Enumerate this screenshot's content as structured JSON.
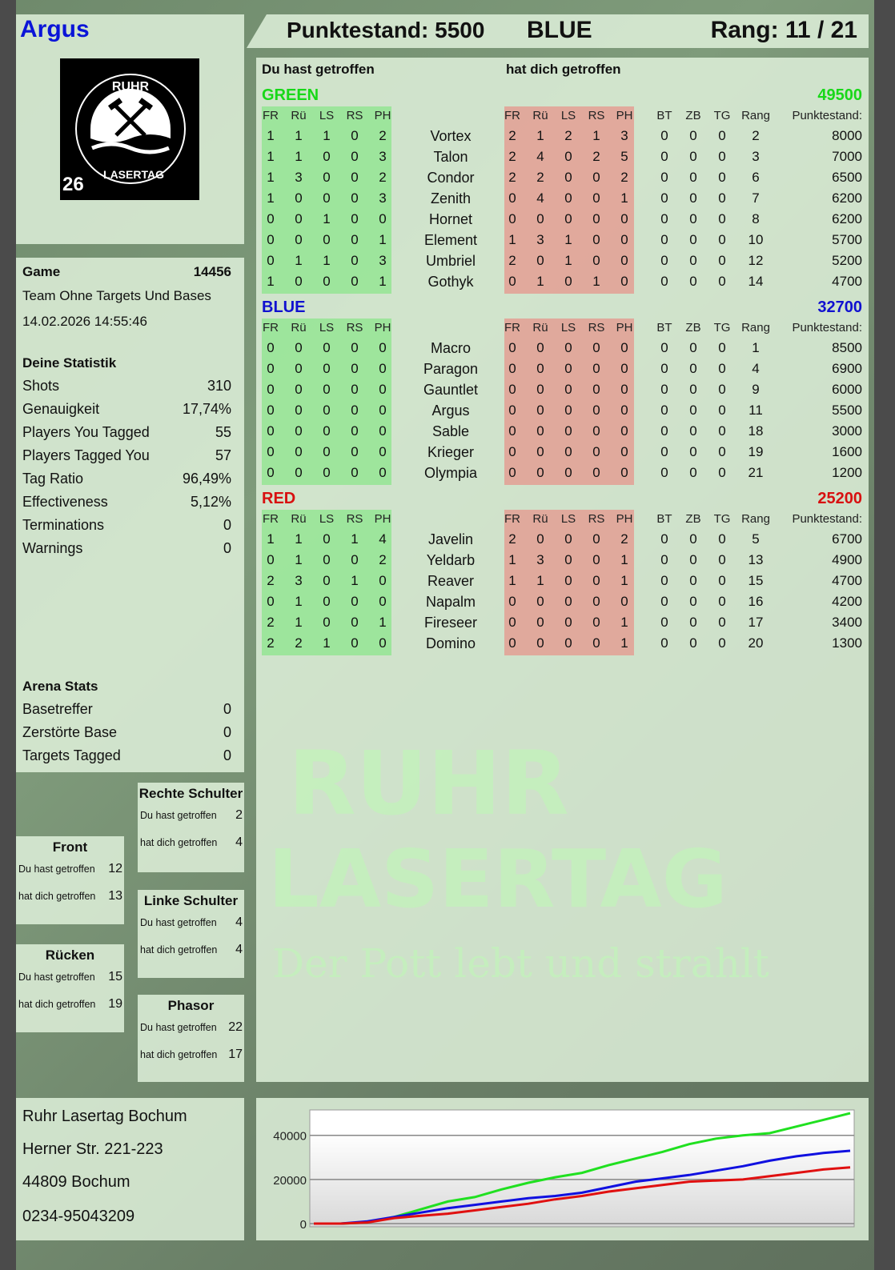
{
  "player": {
    "name": "Argus",
    "color": "#0a14d8"
  },
  "logo": {
    "top": "RUHR",
    "bottom": "LASERTAG",
    "number": "26"
  },
  "header": {
    "score": "Punktestand: 5500",
    "team": "BLUE",
    "rank": "Rang: 11 / 21"
  },
  "table": {
    "hit_by_you": "Du hast getroffen",
    "hit_you": "hat dich getroffen",
    "cols_hit": [
      "FR",
      "Rü",
      "LS",
      "RS",
      "PH"
    ],
    "cols_extra": [
      "BT",
      "ZB",
      "TG",
      "Rang",
      "Punktestand:"
    ],
    "teams": [
      {
        "name": "GREEN",
        "score": "49500",
        "color": "#18d818",
        "players": [
          {
            "n": "Vortex",
            "a": [
              1,
              1,
              1,
              0,
              2
            ],
            "b": [
              2,
              1,
              2,
              1,
              3
            ],
            "e": [
              0,
              0,
              0,
              2
            ],
            "p": 8000
          },
          {
            "n": "Talon",
            "a": [
              1,
              1,
              0,
              0,
              3
            ],
            "b": [
              2,
              4,
              0,
              2,
              5
            ],
            "e": [
              0,
              0,
              0,
              3
            ],
            "p": 7000
          },
          {
            "n": "Condor",
            "a": [
              1,
              3,
              0,
              0,
              2
            ],
            "b": [
              2,
              2,
              0,
              0,
              2
            ],
            "e": [
              0,
              0,
              0,
              6
            ],
            "p": 6500
          },
          {
            "n": "Zenith",
            "a": [
              1,
              0,
              0,
              0,
              3
            ],
            "b": [
              0,
              4,
              0,
              0,
              1
            ],
            "e": [
              0,
              0,
              0,
              7
            ],
            "p": 6200
          },
          {
            "n": "Hornet",
            "a": [
              0,
              0,
              1,
              0,
              0
            ],
            "b": [
              0,
              0,
              0,
              0,
              0
            ],
            "e": [
              0,
              0,
              0,
              8
            ],
            "p": 6200
          },
          {
            "n": "Element",
            "a": [
              0,
              0,
              0,
              0,
              1
            ],
            "b": [
              1,
              3,
              1,
              0,
              0
            ],
            "e": [
              0,
              0,
              0,
              10
            ],
            "p": 5700
          },
          {
            "n": "Umbriel",
            "a": [
              0,
              1,
              1,
              0,
              3
            ],
            "b": [
              2,
              0,
              1,
              0,
              0
            ],
            "e": [
              0,
              0,
              0,
              12
            ],
            "p": 5200
          },
          {
            "n": "Gothyk",
            "a": [
              1,
              0,
              0,
              0,
              1
            ],
            "b": [
              0,
              1,
              0,
              1,
              0
            ],
            "e": [
              0,
              0,
              0,
              14
            ],
            "p": 4700
          }
        ]
      },
      {
        "name": "BLUE",
        "score": "32700",
        "color": "#1010d0",
        "players": [
          {
            "n": "Macro",
            "a": [
              0,
              0,
              0,
              0,
              0
            ],
            "b": [
              0,
              0,
              0,
              0,
              0
            ],
            "e": [
              0,
              0,
              0,
              1
            ],
            "p": 8500
          },
          {
            "n": "Paragon",
            "a": [
              0,
              0,
              0,
              0,
              0
            ],
            "b": [
              0,
              0,
              0,
              0,
              0
            ],
            "e": [
              0,
              0,
              0,
              4
            ],
            "p": 6900
          },
          {
            "n": "Gauntlet",
            "a": [
              0,
              0,
              0,
              0,
              0
            ],
            "b": [
              0,
              0,
              0,
              0,
              0
            ],
            "e": [
              0,
              0,
              0,
              9
            ],
            "p": 6000
          },
          {
            "n": "Argus",
            "a": [
              0,
              0,
              0,
              0,
              0
            ],
            "b": [
              0,
              0,
              0,
              0,
              0
            ],
            "e": [
              0,
              0,
              0,
              11
            ],
            "p": 5500
          },
          {
            "n": "Sable",
            "a": [
              0,
              0,
              0,
              0,
              0
            ],
            "b": [
              0,
              0,
              0,
              0,
              0
            ],
            "e": [
              0,
              0,
              0,
              18
            ],
            "p": 3000
          },
          {
            "n": "Krieger",
            "a": [
              0,
              0,
              0,
              0,
              0
            ],
            "b": [
              0,
              0,
              0,
              0,
              0
            ],
            "e": [
              0,
              0,
              0,
              19
            ],
            "p": 1600
          },
          {
            "n": "Olympia",
            "a": [
              0,
              0,
              0,
              0,
              0
            ],
            "b": [
              0,
              0,
              0,
              0,
              0
            ],
            "e": [
              0,
              0,
              0,
              21
            ],
            "p": 1200
          }
        ]
      },
      {
        "name": "RED",
        "score": "25200",
        "color": "#d81010",
        "players": [
          {
            "n": "Javelin",
            "a": [
              1,
              1,
              0,
              1,
              4
            ],
            "b": [
              2,
              0,
              0,
              0,
              2
            ],
            "e": [
              0,
              0,
              0,
              5
            ],
            "p": 6700
          },
          {
            "n": "Yeldarb",
            "a": [
              0,
              1,
              0,
              0,
              2
            ],
            "b": [
              1,
              3,
              0,
              0,
              1
            ],
            "e": [
              0,
              0,
              0,
              13
            ],
            "p": 4900
          },
          {
            "n": "Reaver",
            "a": [
              2,
              3,
              0,
              1,
              0
            ],
            "b": [
              1,
              1,
              0,
              0,
              1
            ],
            "e": [
              0,
              0,
              0,
              15
            ],
            "p": 4700
          },
          {
            "n": "Napalm",
            "a": [
              0,
              1,
              0,
              0,
              0
            ],
            "b": [
              0,
              0,
              0,
              0,
              0
            ],
            "e": [
              0,
              0,
              0,
              16
            ],
            "p": 4200
          },
          {
            "n": "Fireseer",
            "a": [
              2,
              1,
              0,
              0,
              1
            ],
            "b": [
              0,
              0,
              0,
              0,
              1
            ],
            "e": [
              0,
              0,
              0,
              17
            ],
            "p": 3400
          },
          {
            "n": "Domino",
            "a": [
              2,
              2,
              1,
              0,
              0
            ],
            "b": [
              0,
              0,
              0,
              0,
              1
            ],
            "e": [
              0,
              0,
              0,
              20
            ],
            "p": 1300
          }
        ]
      }
    ]
  },
  "game": {
    "label": "Game",
    "id": "14456",
    "mode": "Team Ohne Targets Und Bases",
    "datetime": "14.02.2026 14:55:46",
    "stats_title": "Deine Statistik",
    "stats": [
      [
        "Shots",
        "310"
      ],
      [
        "Genauigkeit",
        "17,74%"
      ],
      [
        "Players You Tagged",
        "55"
      ],
      [
        "Players Tagged You",
        "57"
      ],
      [
        "Tag Ratio",
        "96,49%"
      ],
      [
        "Effectiveness",
        "5,12%"
      ],
      [
        "Terminations",
        "0"
      ],
      [
        "Warnings",
        "0"
      ]
    ],
    "arena_title": "Arena Stats",
    "arena": [
      [
        "Basetreffer",
        "0"
      ],
      [
        "Zerstörte Base",
        "0"
      ],
      [
        "Targets Tagged",
        "0"
      ]
    ]
  },
  "bodyparts": {
    "hit_by_you": "Du hast getroffen",
    "hit_you": "hat dich getroffen",
    "items": [
      {
        "name": "Rechte Schulter",
        "a": "2",
        "b": "4"
      },
      {
        "name": "Front",
        "a": "12",
        "b": "13"
      },
      {
        "name": "Linke Schulter",
        "a": "4",
        "b": "4"
      },
      {
        "name": "Rücken",
        "a": "15",
        "b": "19"
      },
      {
        "name": "Phasor",
        "a": "22",
        "b": "17"
      }
    ]
  },
  "address": [
    "Ruhr Lasertag Bochum",
    "Herner Str. 221-223",
    "44809 Bochum",
    "0234-95043209"
  ],
  "watermark": {
    "line1": "RUHR",
    "line2": "LASERTAG",
    "slogan": "Der Pott lebt und strahlt"
  },
  "chart_data": {
    "type": "line",
    "ylim": [
      0,
      51500
    ],
    "yticks": [
      0,
      20000,
      40000
    ],
    "ytick_labels": [
      "0",
      "20000",
      "40000"
    ],
    "grid": true,
    "x": [
      0,
      1,
      2,
      3,
      4,
      5,
      6,
      7,
      8,
      9,
      10,
      11,
      12,
      13,
      14,
      15,
      16,
      17,
      18,
      19,
      20
    ],
    "series": [
      {
        "color": "#20e020",
        "values": [
          0,
          0,
          500,
          3000,
          6500,
          10000,
          12000,
          15500,
          18500,
          21000,
          23000,
          26500,
          29500,
          32500,
          36000,
          38500,
          40000,
          41000,
          44000,
          47000,
          50000
        ]
      },
      {
        "color": "#1010e0",
        "values": [
          0,
          0,
          1000,
          3000,
          5000,
          7000,
          8500,
          10000,
          11500,
          12500,
          14000,
          16500,
          19000,
          20500,
          22000,
          24000,
          26000,
          28500,
          30500,
          32000,
          33000
        ]
      },
      {
        "color": "#e01010",
        "values": [
          0,
          0,
          500,
          2500,
          3500,
          4500,
          6000,
          7500,
          9000,
          11000,
          12500,
          14500,
          16000,
          17500,
          19000,
          19500,
          20000,
          21500,
          23000,
          24500,
          25500
        ]
      }
    ]
  }
}
